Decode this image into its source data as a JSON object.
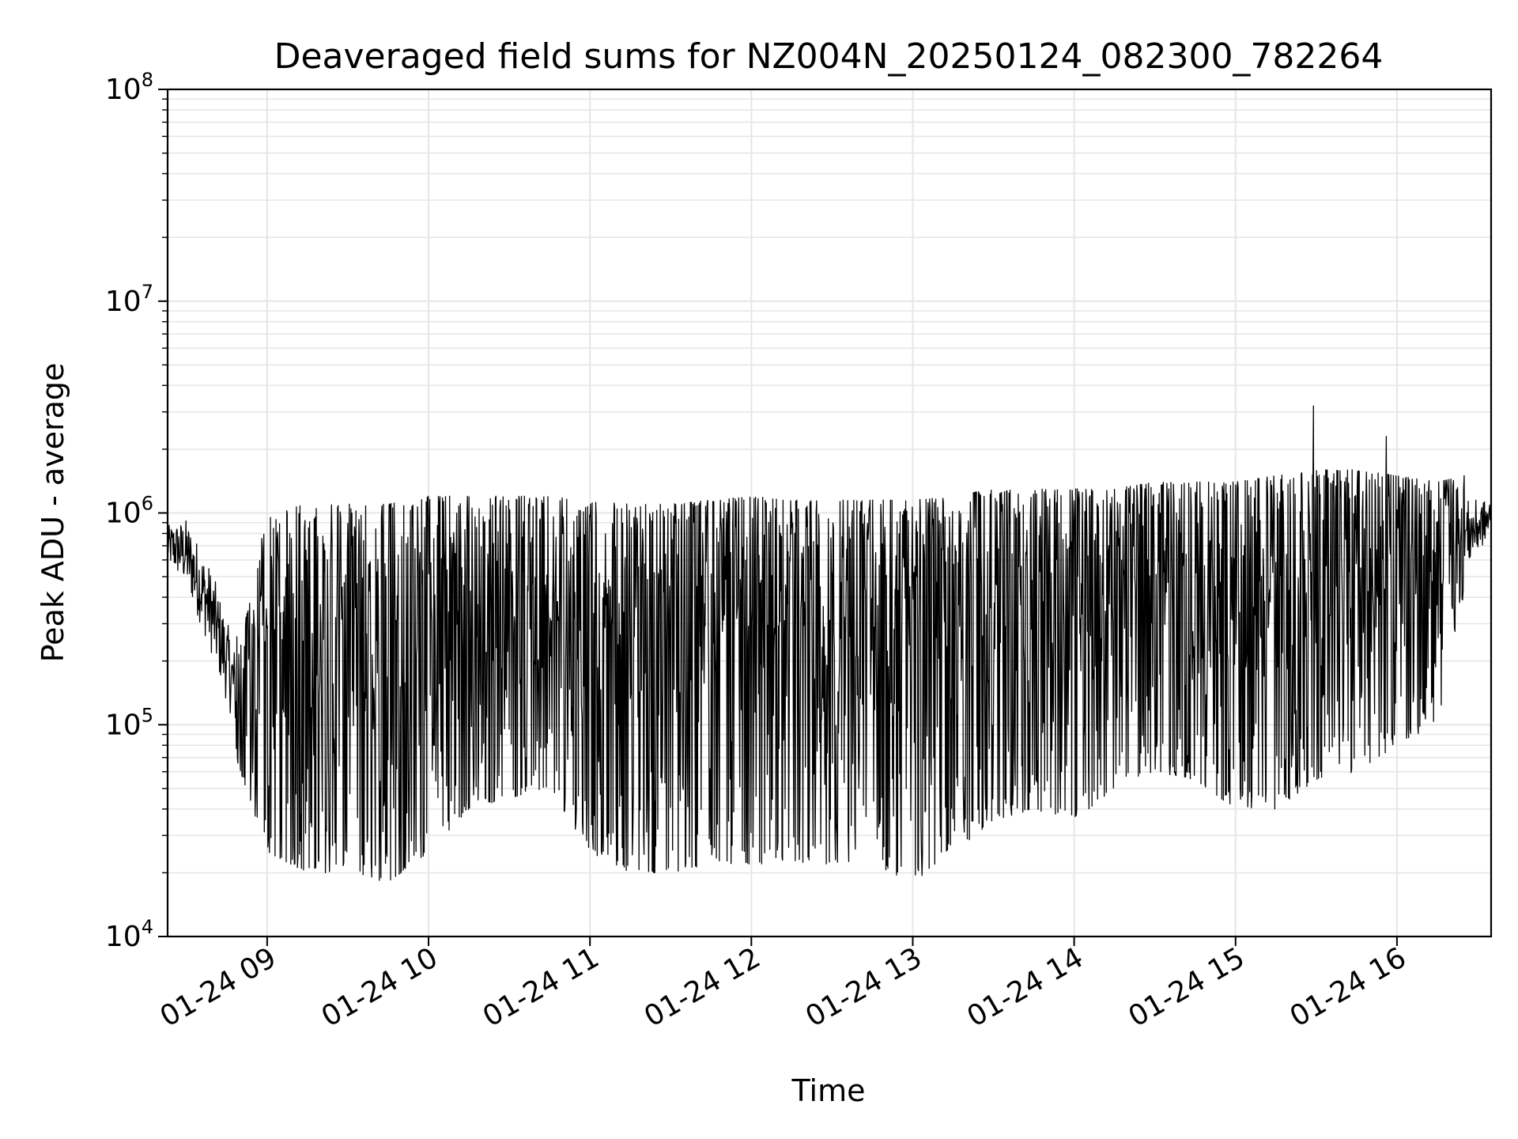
{
  "chart_data": {
    "type": "line",
    "title": "Deaveraged field sums for NZ004N_20250124_082300_782264",
    "xlabel": "Time",
    "ylabel": "Peak ADU - average",
    "yscale": "log",
    "ylim": [
      10000,
      100000000
    ],
    "xlim": [
      "2025-01-24 08:23",
      "2025-01-24 16:35"
    ],
    "grid": true,
    "x_ticks": [
      "01-24 09",
      "01-24 10",
      "01-24 11",
      "01-24 12",
      "01-24 13",
      "01-24 14",
      "01-24 15",
      "01-24 16"
    ],
    "y_ticks": [
      {
        "base": "10",
        "exp": "4"
      },
      {
        "base": "10",
        "exp": "5"
      },
      {
        "base": "10",
        "exp": "6"
      },
      {
        "base": "10",
        "exp": "7"
      },
      {
        "base": "10",
        "exp": "8"
      }
    ],
    "series": [
      {
        "color": "#000000",
        "points_note": "dense oscillating trace; envelope summarized as [time, upper, lower]",
        "envelope": [
          [
            "08:23",
            1000000,
            500000
          ],
          [
            "08:30",
            1200000,
            350000
          ],
          [
            "08:40",
            700000,
            150000
          ],
          [
            "08:50",
            250000,
            60000
          ],
          [
            "09:00",
            1000000,
            25000
          ],
          [
            "09:15",
            1100000,
            20000
          ],
          [
            "09:30",
            1100000,
            20000
          ],
          [
            "09:45",
            1100000,
            18000
          ],
          [
            "10:00",
            1200000,
            25000
          ],
          [
            "10:15",
            1200000,
            40000
          ],
          [
            "10:30",
            1200000,
            45000
          ],
          [
            "10:45",
            1200000,
            50000
          ],
          [
            "11:00",
            1150000,
            25000
          ],
          [
            "11:15",
            1100000,
            20000
          ],
          [
            "11:30",
            1100000,
            20000
          ],
          [
            "11:45",
            1150000,
            22000
          ],
          [
            "12:00",
            1200000,
            22000
          ],
          [
            "12:15",
            1150000,
            22000
          ],
          [
            "12:30",
            1150000,
            22000
          ],
          [
            "12:45",
            1150000,
            22000
          ],
          [
            "13:00",
            1150000,
            18000
          ],
          [
            "13:15",
            1200000,
            25000
          ],
          [
            "13:30",
            1300000,
            35000
          ],
          [
            "13:45",
            1300000,
            40000
          ],
          [
            "14:00",
            1300000,
            35000
          ],
          [
            "14:15",
            1300000,
            50000
          ],
          [
            "14:30",
            1400000,
            60000
          ],
          [
            "14:45",
            1400000,
            55000
          ],
          [
            "15:00",
            1400000,
            40000
          ],
          [
            "15:15",
            1500000,
            40000
          ],
          [
            "15:30",
            1600000,
            55000
          ],
          [
            "15:45",
            1600000,
            60000
          ],
          [
            "16:00",
            1500000,
            80000
          ],
          [
            "16:15",
            1400000,
            100000
          ],
          [
            "16:25",
            1500000,
            400000
          ],
          [
            "16:35",
            1300000,
            700000
          ]
        ],
        "peaks": [
          [
            "15:29",
            3200000
          ],
          [
            "15:56",
            2300000
          ]
        ]
      }
    ]
  }
}
